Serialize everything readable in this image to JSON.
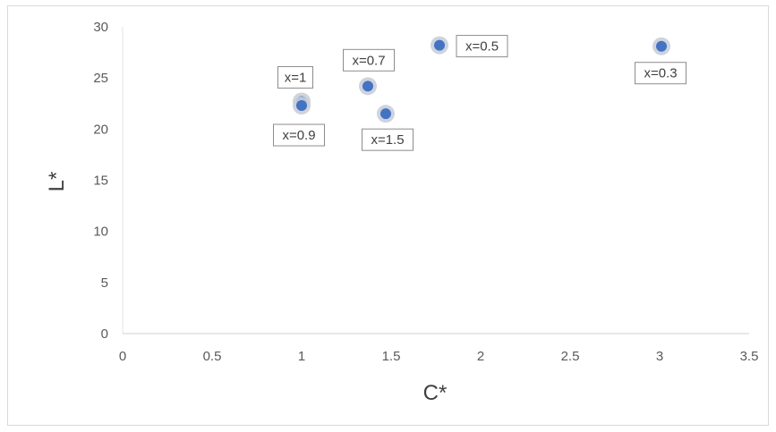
{
  "chart_data": {
    "type": "scatter",
    "title": "",
    "xlabel": "C*",
    "ylabel": "L*",
    "xlim": [
      0,
      3.5
    ],
    "ylim": [
      0,
      30
    ],
    "x_ticks": [
      "0",
      "0.5",
      "1",
      "1.5",
      "2",
      "2.5",
      "3",
      "3.5"
    ],
    "y_ticks": [
      "0",
      "5",
      "10",
      "15",
      "20",
      "25",
      "30"
    ],
    "grid": false,
    "legend": "none",
    "point_color": "#4472c4",
    "points": [
      {
        "label": "x=1",
        "x": 1.0,
        "y": 22.7
      },
      {
        "label": "x=0.9",
        "x": 1.0,
        "y": 22.3
      },
      {
        "label": "x=0.7",
        "x": 1.37,
        "y": 24.2
      },
      {
        "label": "x=1.5",
        "x": 1.47,
        "y": 21.5
      },
      {
        "label": "x=0.5",
        "x": 1.77,
        "y": 28.2
      },
      {
        "label": "x=0.3",
        "x": 3.01,
        "y": 28.1
      }
    ]
  }
}
